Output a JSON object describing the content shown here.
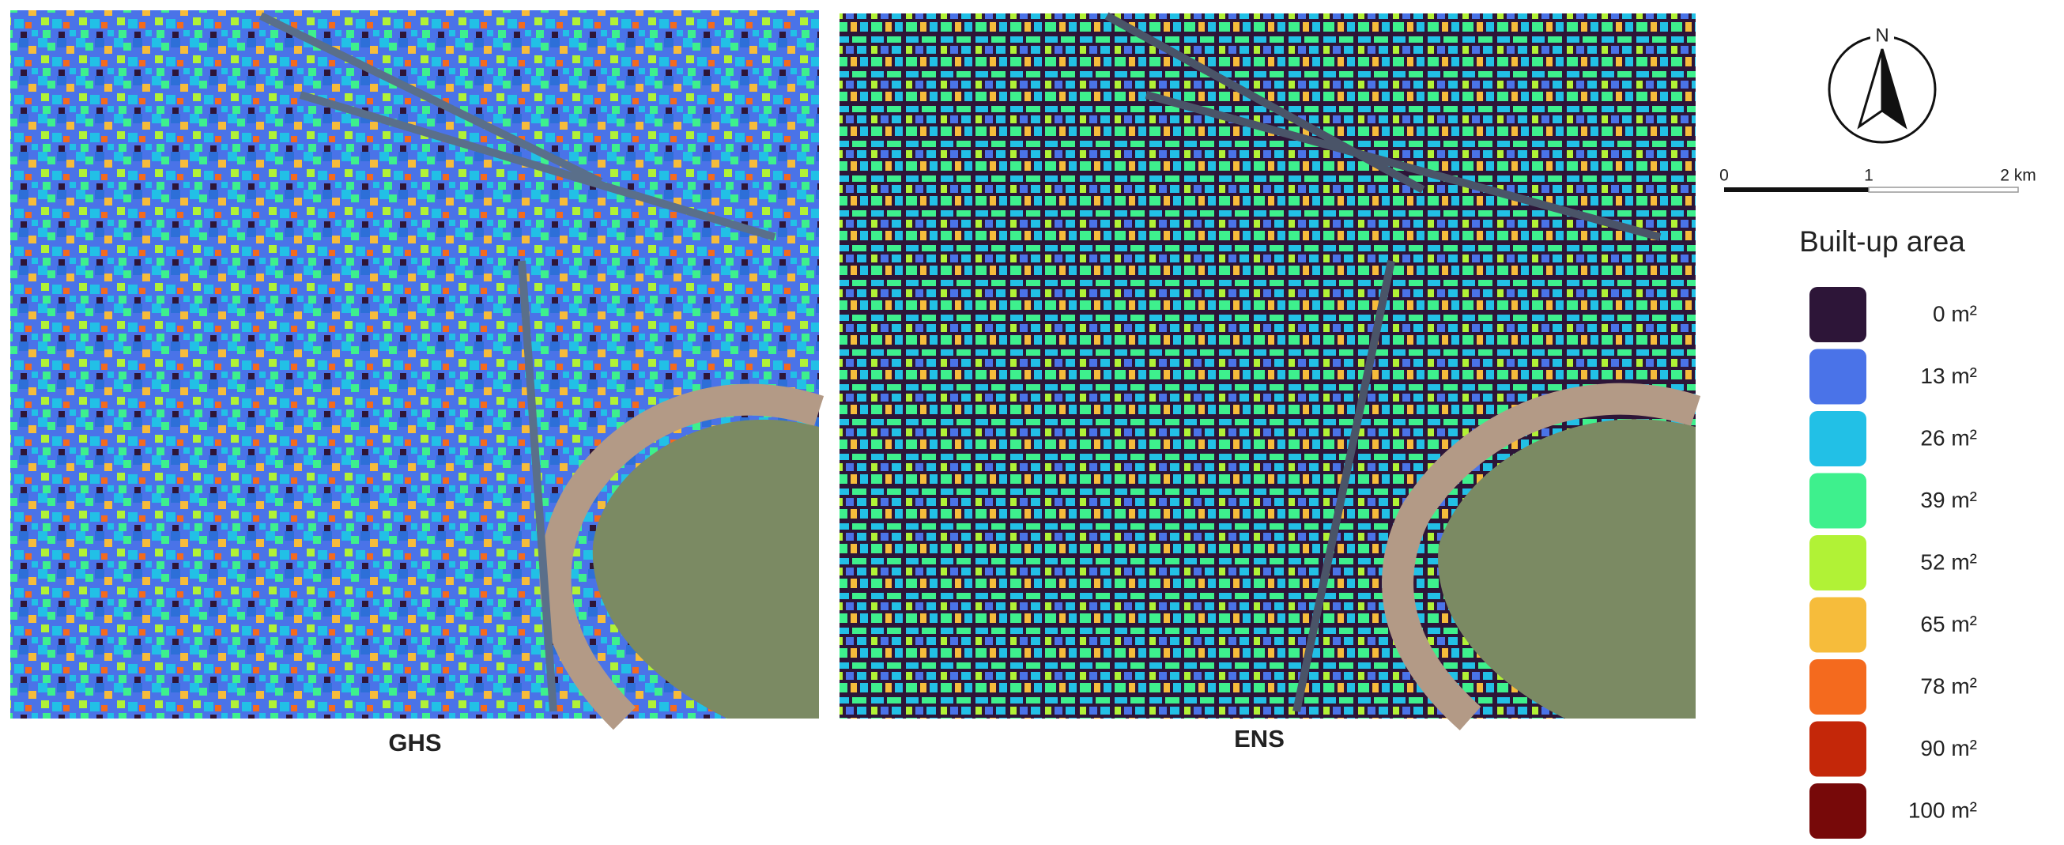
{
  "panels": [
    {
      "label": "GHS"
    },
    {
      "label": "ENS"
    }
  ],
  "north_arrow": {
    "label": "N"
  },
  "scale_bar": {
    "labels": [
      "0",
      "1",
      "2 km"
    ]
  },
  "legend": {
    "title": "Built-up area",
    "items": [
      {
        "label": "0 m²",
        "color": "#2d1538"
      },
      {
        "label": "13 m²",
        "color": "#4a73e8"
      },
      {
        "label": "26 m²",
        "color": "#22c0e6"
      },
      {
        "label": "39 m²",
        "color": "#3ef08d"
      },
      {
        "label": "52 m²",
        "color": "#b1f236"
      },
      {
        "label": "65 m²",
        "color": "#f6bc3b"
      },
      {
        "label": "78 m²",
        "color": "#f46a1e"
      },
      {
        "label": "90 m²",
        "color": "#c42709"
      },
      {
        "label": "100 m²",
        "color": "#770909"
      }
    ]
  }
}
